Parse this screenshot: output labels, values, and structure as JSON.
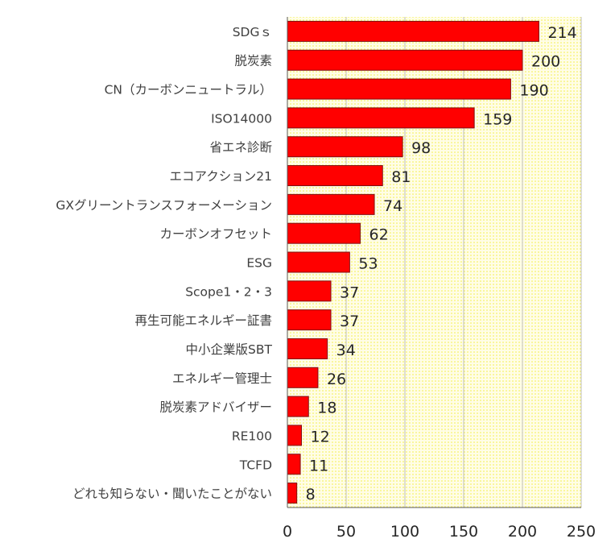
{
  "chart_data": {
    "type": "bar",
    "orientation": "horizontal",
    "categories": [
      "SDGｓ",
      "脱炭素",
      "CN（カーボンニュートラル）",
      "ISO14000",
      "省エネ診断",
      "エコアクション21",
      "GXグリーントランスフォーメーション",
      "カーボンオフセット",
      "ESG",
      "Scope1・2・3",
      "再生可能エネルギー証書",
      "中小企業版SBT",
      "エネルギー管理士",
      "脱炭素アドバイザー",
      "RE100",
      "TCFD",
      "どれも知らない・聞いたことがない"
    ],
    "values": [
      214,
      200,
      190,
      159,
      98,
      81,
      74,
      62,
      53,
      37,
      37,
      34,
      26,
      18,
      12,
      11,
      8
    ],
    "xlim": [
      0,
      250
    ],
    "xticks": [
      "0",
      "50",
      "100",
      "150",
      "200",
      "250"
    ],
    "grid": "vertical",
    "title": "",
    "xlabel": "",
    "ylabel": "",
    "colors": {
      "bar_fill": "#ff0000",
      "bar_stroke": "#7f1010",
      "plot_background": "#fffde6",
      "plot_dots": "#f2ee3a",
      "gridline": "#bfbfbf",
      "axis": "#595959"
    }
  }
}
